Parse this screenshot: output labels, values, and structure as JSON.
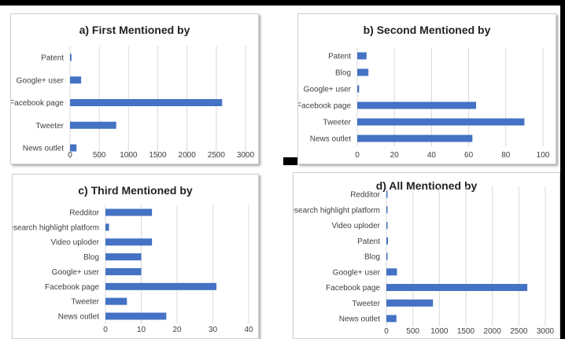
{
  "colors": {
    "bar": "#4472c4",
    "grid": "#d9d9d9",
    "text": "#404040"
  },
  "chart_data": [
    {
      "type": "bar",
      "orientation": "horizontal",
      "title": "a) First Mentioned by",
      "categories": [
        "Patent",
        "Google+ user",
        "Facebook page",
        "Tweeter",
        "News outlet"
      ],
      "values": [
        25,
        190,
        2600,
        790,
        110
      ],
      "xlim": [
        0,
        3000
      ],
      "ticks": [
        0,
        500,
        1000,
        1500,
        2000,
        2500,
        3000
      ],
      "tick_labels": [
        "0",
        "500",
        "1000",
        "1500",
        "2000",
        "2500",
        "3000"
      ],
      "grid": true
    },
    {
      "type": "bar",
      "orientation": "horizontal",
      "title": "b) Second Mentioned by",
      "categories": [
        "Patent",
        "Blog",
        "Google+ user",
        "Facebook page",
        "Tweeter",
        "News outlet"
      ],
      "values": [
        5,
        6,
        1,
        64,
        90,
        62
      ],
      "xlim": [
        0,
        100
      ],
      "ticks": [
        0,
        20,
        40,
        60,
        80,
        100
      ],
      "tick_labels": [
        "0",
        "20",
        "40",
        "60",
        "80",
        "100"
      ],
      "grid": true
    },
    {
      "type": "bar",
      "orientation": "horizontal",
      "title": "c) Third Mentioned by",
      "categories": [
        "Redditor",
        "Research highlight platform",
        "Video uploder",
        "Blog",
        "Google+ user",
        "Facebook page",
        "Tweeter",
        "News outlet"
      ],
      "values": [
        13,
        1,
        13,
        10,
        10,
        31,
        6,
        17
      ],
      "xlim": [
        0,
        40
      ],
      "ticks": [
        0,
        10,
        20,
        30,
        40
      ],
      "tick_labels": [
        "0",
        "10",
        "20",
        "30",
        "40"
      ],
      "grid": true
    },
    {
      "type": "bar",
      "orientation": "horizontal",
      "title": "d) All Mentioned by",
      "categories": [
        "Redditor",
        "Research highlight platform",
        "Video uploder",
        "Patent",
        "Blog",
        "Google+ user",
        "Facebook page",
        "Tweeter",
        "News outlet"
      ],
      "values": [
        13,
        1,
        13,
        30,
        16,
        200,
        2660,
        880,
        190
      ],
      "xlim": [
        0,
        3000
      ],
      "ticks": [
        0,
        500,
        1000,
        1500,
        2000,
        2500,
        3000
      ],
      "tick_labels": [
        "0",
        "500",
        "1000",
        "1500",
        "2000",
        "2500",
        "3000"
      ],
      "grid": true
    }
  ]
}
